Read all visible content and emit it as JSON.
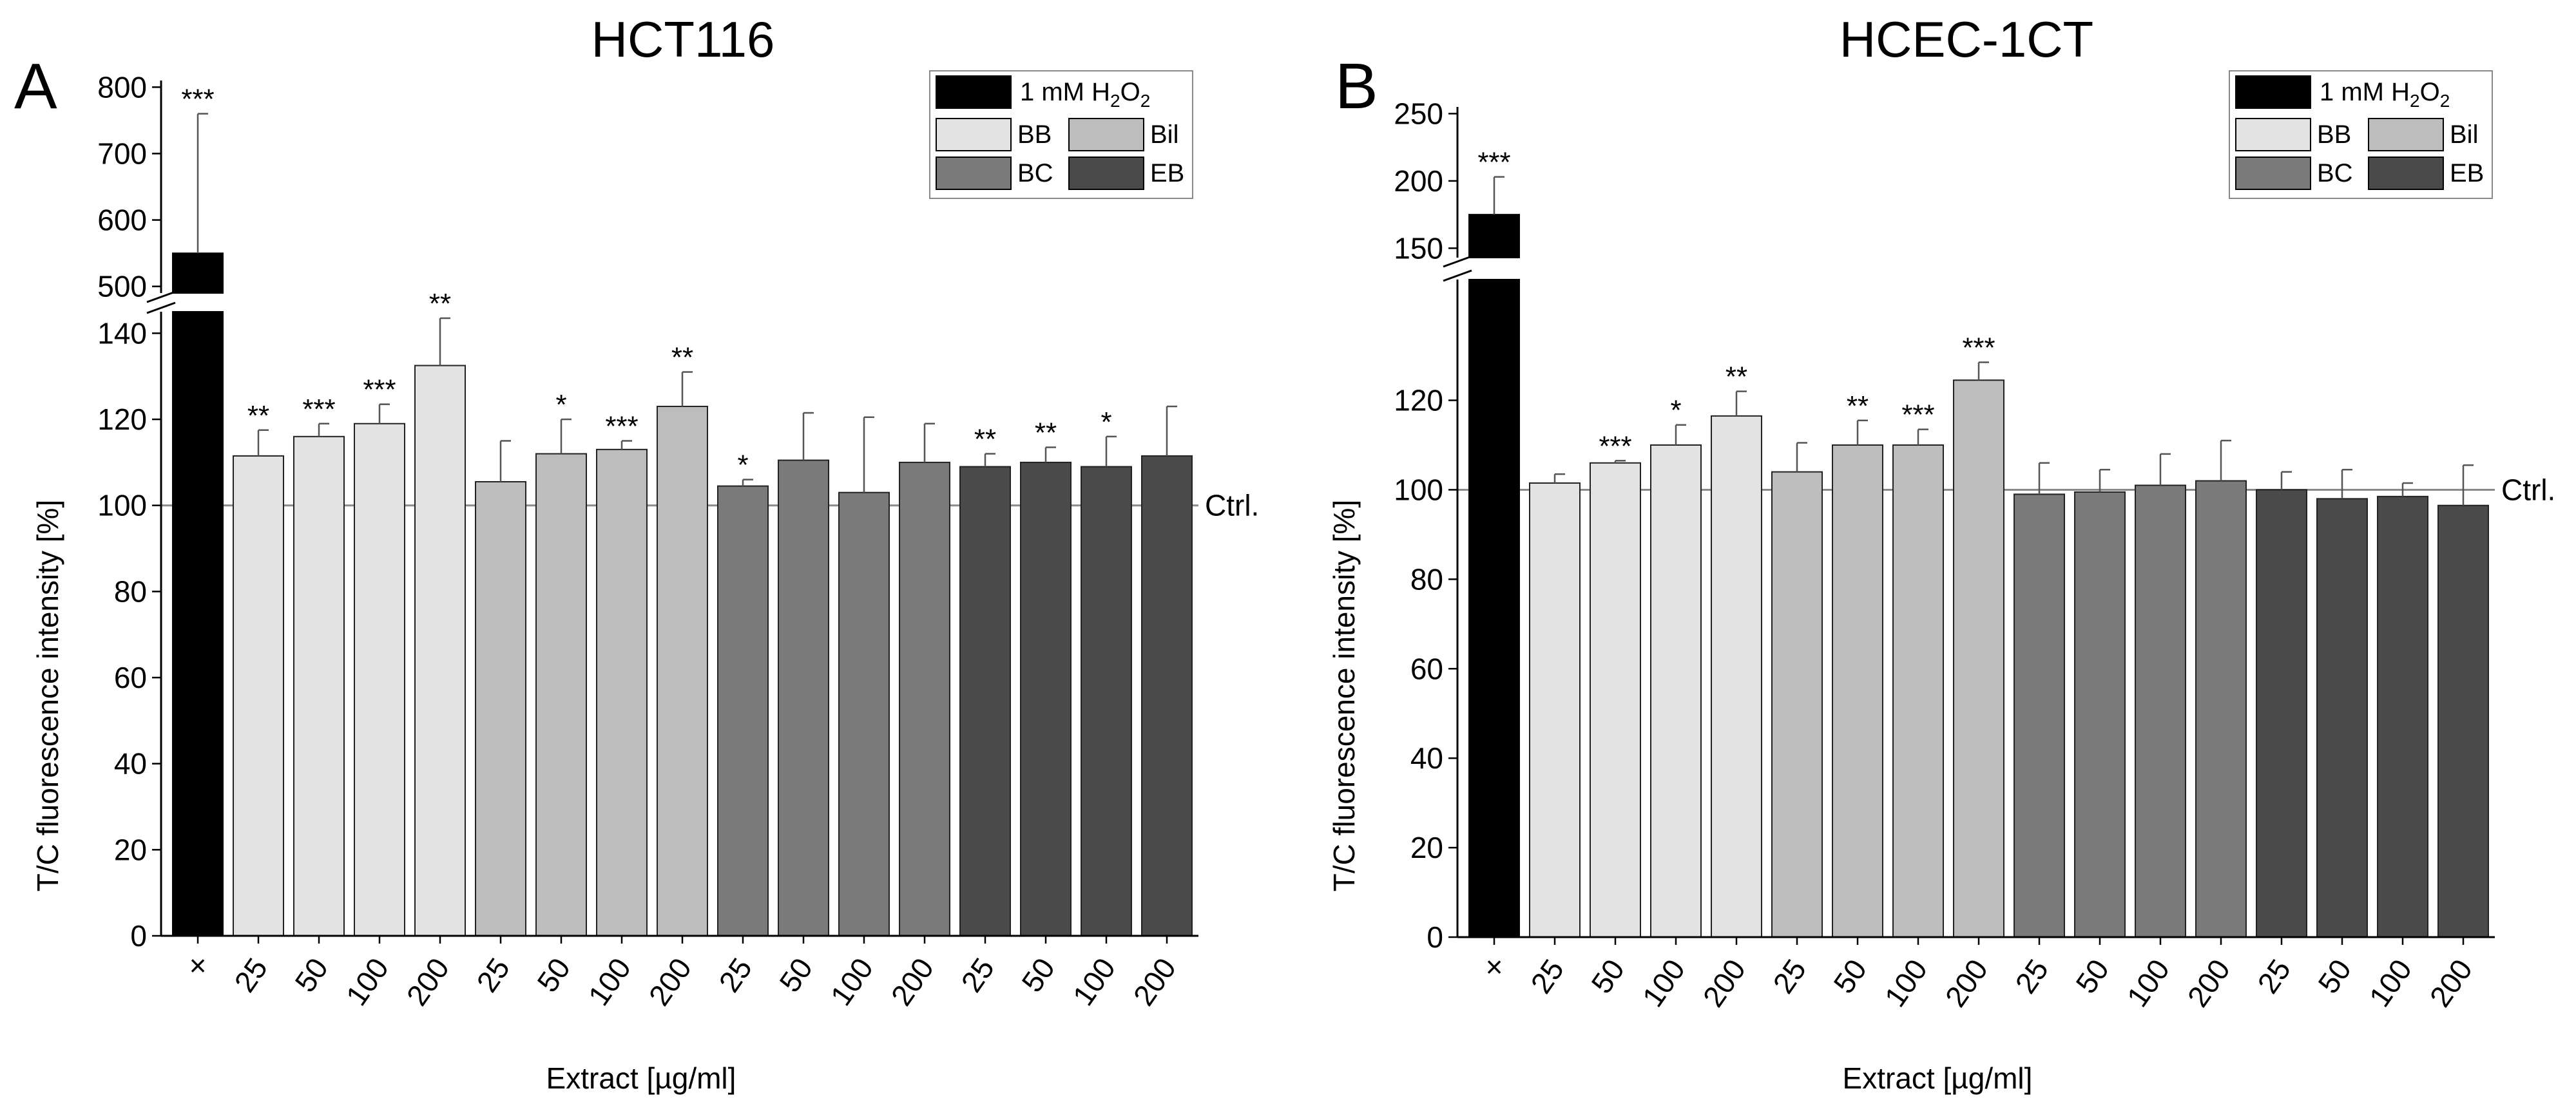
{
  "figure": {
    "colors": {
      "H2O2": "#000000",
      "BB": "#e3e3e3",
      "Bil": "#bdbdbd",
      "BC": "#7a7a7a",
      "EB": "#4a4a4a"
    }
  },
  "chart_data": [
    {
      "type": "bar",
      "panel_letter": "A",
      "title": "HCT116",
      "xlabel": "Extract [µg/ml]",
      "ylabel": "T/C fluorescence intensity [%]",
      "categories": [
        "×",
        "25",
        "50",
        "100",
        "200",
        "25",
        "50",
        "100",
        "200",
        "25",
        "50",
        "100",
        "200",
        "25",
        "50",
        "100",
        "200"
      ],
      "groups": [
        "H2O2",
        "BB",
        "BB",
        "BB",
        "BB",
        "Bil",
        "Bil",
        "Bil",
        "Bil",
        "BC",
        "BC",
        "BC",
        "BC",
        "EB",
        "EB",
        "EB",
        "EB"
      ],
      "values": [
        550,
        111.5,
        116,
        119,
        132.5,
        105.5,
        112,
        113,
        123,
        104.5,
        110.5,
        103,
        110,
        109,
        110,
        109,
        111.5
      ],
      "errors": [
        210,
        6,
        3,
        4.5,
        11,
        9.5,
        8,
        2,
        8,
        1.5,
        11,
        17.5,
        9,
        3,
        3.5,
        7,
        11.5
      ],
      "significance": [
        "***",
        "**",
        "***",
        "***",
        "**",
        "",
        "*",
        "***",
        "**",
        "*",
        "",
        "",
        "",
        "**",
        "**",
        "*",
        ""
      ],
      "axis_lower": {
        "ylim": [
          0,
          145
        ],
        "ticks": [
          0,
          20,
          40,
          60,
          80,
          100,
          120,
          140
        ]
      },
      "axis_upper": {
        "ylim": [
          490,
          810
        ],
        "ticks": [
          500,
          600,
          700,
          800
        ]
      },
      "reference_line": {
        "value": 100,
        "label": "Ctrl."
      },
      "legend": {
        "h2o2_label": "1 mM H",
        "h2o2_sub1": "2",
        "h2o2_mid": "O",
        "h2o2_sub2": "2",
        "entries": [
          "BB",
          "Bil",
          "BC",
          "EB"
        ],
        "position": "top-right"
      }
    },
    {
      "type": "bar",
      "panel_letter": "B",
      "title": "HCEC-1CT",
      "xlabel": "Extract [µg/ml]",
      "ylabel": "T/C fluorescence intensity [%]",
      "categories": [
        "×",
        "25",
        "50",
        "100",
        "200",
        "25",
        "50",
        "100",
        "200",
        "25",
        "50",
        "100",
        "200",
        "25",
        "50",
        "100",
        "200"
      ],
      "groups": [
        "H2O2",
        "BB",
        "BB",
        "BB",
        "BB",
        "Bil",
        "Bil",
        "Bil",
        "Bil",
        "BC",
        "BC",
        "BC",
        "BC",
        "EB",
        "EB",
        "EB",
        "EB"
      ],
      "values": [
        175,
        101.5,
        106,
        110,
        116.5,
        104,
        110,
        110,
        124.5,
        99,
        99.5,
        101,
        102,
        100,
        98,
        98.5,
        96.5
      ],
      "errors": [
        28,
        2,
        0.5,
        4.5,
        5.5,
        6.5,
        5.5,
        3.5,
        4,
        7,
        5,
        7,
        9,
        4,
        6.5,
        3,
        9
      ],
      "significance": [
        "***",
        "",
        "***",
        "*",
        "**",
        "",
        "**",
        "***",
        "***",
        "",
        "",
        "",
        "",
        "",
        "",
        "",
        ""
      ],
      "axis_lower": {
        "ylim": [
          0,
          147
        ],
        "ticks": [
          0,
          20,
          40,
          60,
          80,
          100,
          120
        ]
      },
      "axis_upper": {
        "ylim": [
          143,
          255
        ],
        "ticks": [
          150,
          200,
          250
        ]
      },
      "reference_line": {
        "value": 100,
        "label": "Ctrl."
      },
      "legend": {
        "h2o2_label": "1 mM H",
        "h2o2_sub1": "2",
        "h2o2_mid": "O",
        "h2o2_sub2": "2",
        "entries": [
          "BB",
          "Bil",
          "BC",
          "EB"
        ],
        "position": "top-right"
      }
    }
  ]
}
